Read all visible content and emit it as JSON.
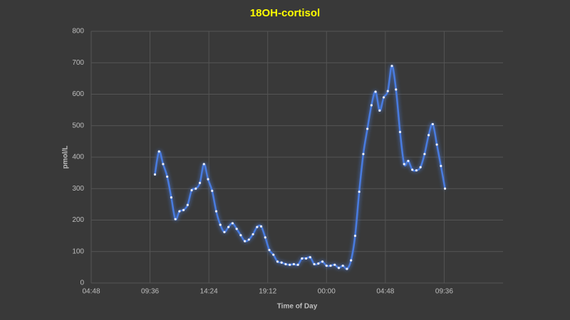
{
  "chart_data": {
    "type": "line",
    "title": "18OH-cortisol",
    "x_label": "Time of Day",
    "y_label": "pmol/L",
    "x": [
      600,
      620,
      640,
      660,
      680,
      700,
      720,
      740,
      760,
      780,
      800,
      820,
      840,
      860,
      880,
      900,
      920,
      940,
      960,
      980,
      1000,
      1020,
      1040,
      1060,
      1080,
      1100,
      1120,
      1140,
      1160,
      1180,
      1200,
      1220,
      1240,
      1260,
      1280,
      1300,
      1320,
      1340,
      1360,
      1380,
      1400,
      1420,
      1440,
      1460,
      1480,
      1500,
      1520,
      1540,
      1560,
      1580,
      1600,
      1620,
      1640,
      1660,
      1680,
      1700,
      1720,
      1740,
      1760,
      1780,
      1800,
      1820,
      1840,
      1860,
      1880,
      1900,
      1920,
      1940,
      1960,
      1980,
      2000,
      2020
    ],
    "series": [
      {
        "color": "#4a7be0",
        "values": [
          345,
          418,
          378,
          338,
          272,
          203,
          228,
          232,
          248,
          295,
          300,
          318,
          378,
          330,
          293,
          228,
          185,
          162,
          178,
          190,
          172,
          152,
          133,
          138,
          155,
          178,
          180,
          145,
          105,
          90,
          68,
          65,
          60,
          58,
          60,
          58,
          78,
          78,
          82,
          60,
          62,
          68,
          55,
          55,
          58,
          48,
          55,
          45,
          72,
          150,
          290,
          410,
          490,
          565,
          608,
          548,
          590,
          610,
          690,
          615,
          480,
          378,
          388,
          360,
          358,
          368,
          410,
          470,
          505,
          440,
          372,
          300
        ]
      }
    ],
    "xlim": [
      288,
      2304
    ],
    "xticks": [
      {
        "value": 288,
        "label": "04:48"
      },
      {
        "value": 576,
        "label": "09:36"
      },
      {
        "value": 864,
        "label": "14:24"
      },
      {
        "value": 1152,
        "label": "19:12"
      },
      {
        "value": 1440,
        "label": "00:00"
      },
      {
        "value": 1728,
        "label": "04:48"
      },
      {
        "value": 2016,
        "label": "09:36"
      }
    ],
    "ylim": [
      0,
      800
    ],
    "yticks": [
      0,
      100,
      200,
      300,
      400,
      500,
      600,
      700,
      800
    ],
    "grid": true
  }
}
